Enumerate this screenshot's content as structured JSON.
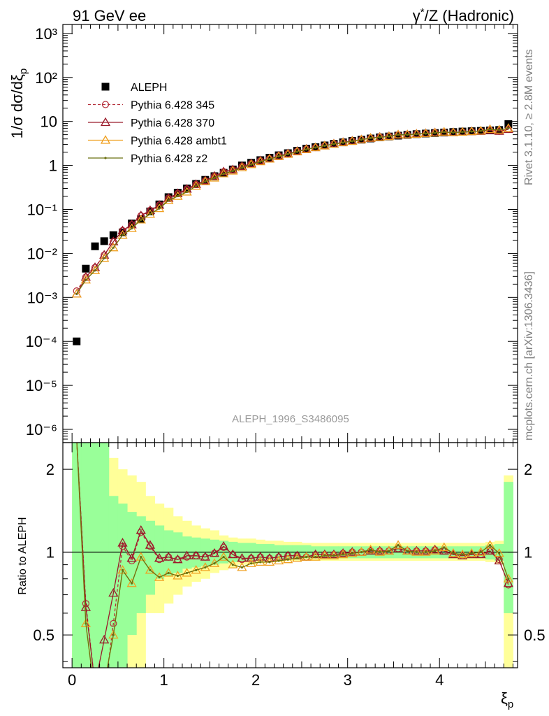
{
  "header": {
    "left_title": "91 GeV ee",
    "right_title_prefix": "γ",
    "right_title_sup": "*",
    "right_title_suffix": "/Z (Hadronic)"
  },
  "watermarks": {
    "analysis": "ALEPH_1996_S3486095",
    "rivet": "Rivet 3.1.10, ≥ 2.8M events",
    "mcplots": "mcplots.cern.ch [arXiv:1306.3436]"
  },
  "axes": {
    "y_main_label": "1/σ dσ/dξ",
    "y_main_label_sub": "p",
    "y_ratio_label": "Ratio to ALEPH",
    "x_label": "ξ",
    "x_label_sub": "p"
  },
  "legend": [
    {
      "label": "ALEPH",
      "color": "#000000",
      "marker": "square",
      "line": "none"
    },
    {
      "label": "Pythia 6.428 345",
      "color": "#b5303c",
      "marker": "circle-open",
      "line": "dashed"
    },
    {
      "label": "Pythia 6.428 370",
      "color": "#9a1a2a",
      "marker": "triangle-open",
      "line": "solid"
    },
    {
      "label": "Pythia 6.428 ambt1",
      "color": "#f0a020",
      "marker": "triangle-open",
      "line": "solid"
    },
    {
      "label": "Pythia 6.428 z2",
      "color": "#6b7010",
      "marker": "dot",
      "line": "solid"
    }
  ],
  "chart_data": [
    {
      "type": "scatter",
      "panel": "main",
      "yscale": "log",
      "xlim": [
        -0.1,
        4.85
      ],
      "ylim": [
        5e-07,
        1600
      ],
      "x_ticks": [
        0,
        1,
        2,
        3,
        4
      ],
      "y_tick_labels": [
        "10⁻⁶",
        "10⁻⁵",
        "10⁻⁴",
        "10⁻³",
        "10⁻²",
        "10⁻¹",
        "1",
        "10",
        "10²",
        "10³"
      ],
      "x": [
        0.05,
        0.15,
        0.25,
        0.35,
        0.45,
        0.55,
        0.65,
        0.75,
        0.85,
        0.95,
        1.05,
        1.15,
        1.25,
        1.35,
        1.45,
        1.55,
        1.65,
        1.75,
        1.85,
        1.95,
        2.05,
        2.15,
        2.25,
        2.35,
        2.45,
        2.55,
        2.65,
        2.75,
        2.85,
        2.95,
        3.05,
        3.15,
        3.25,
        3.35,
        3.45,
        3.55,
        3.65,
        3.75,
        3.85,
        3.95,
        4.05,
        4.15,
        4.25,
        4.35,
        4.45,
        4.55,
        4.65,
        4.75
      ],
      "series": [
        {
          "name": "ALEPH",
          "values": [
            0.0001,
            0.0045,
            0.0145,
            0.019,
            0.026,
            0.03,
            0.048,
            0.06,
            0.09,
            0.13,
            0.19,
            0.24,
            0.3,
            0.38,
            0.47,
            0.57,
            0.68,
            0.81,
            1.0,
            1.15,
            1.32,
            1.5,
            1.7,
            1.9,
            2.15,
            2.4,
            2.6,
            2.85,
            3.1,
            3.35,
            3.6,
            3.85,
            4.1,
            4.35,
            4.55,
            4.75,
            4.95,
            5.15,
            5.3,
            5.45,
            5.6,
            5.75,
            5.9,
            6.0,
            6.1,
            6.25,
            6.4,
            8.7
          ]
        },
        {
          "name": "Pythia 6.428 345",
          "values": [
            0.0014,
            0.0029,
            0.0048,
            0.0092,
            0.0185,
            0.033,
            0.045,
            0.072,
            0.095,
            0.125,
            0.18,
            0.23,
            0.29,
            0.37,
            0.45,
            0.57,
            0.72,
            0.8,
            0.95,
            1.1,
            1.28,
            1.42,
            1.65,
            1.85,
            2.1,
            2.35,
            2.55,
            2.8,
            3.1,
            3.35,
            3.6,
            3.85,
            4.15,
            4.4,
            4.6,
            4.9,
            5.0,
            5.2,
            5.35,
            5.55,
            5.65,
            5.6,
            5.75,
            5.9,
            6.0,
            6.3,
            6.0,
            6.6
          ]
        },
        {
          "name": "Pythia 6.428 370",
          "values": [
            0.0012,
            0.0029,
            0.0048,
            0.0092,
            0.0185,
            0.033,
            0.045,
            0.072,
            0.095,
            0.125,
            0.18,
            0.23,
            0.29,
            0.37,
            0.45,
            0.57,
            0.72,
            0.8,
            0.95,
            1.1,
            1.28,
            1.42,
            1.65,
            1.85,
            2.1,
            2.35,
            2.55,
            2.8,
            3.1,
            3.35,
            3.6,
            3.85,
            4.15,
            4.4,
            4.6,
            4.9,
            5.0,
            5.2,
            5.35,
            5.55,
            5.65,
            5.6,
            5.75,
            5.9,
            6.0,
            6.3,
            6.0,
            6.6
          ]
        },
        {
          "name": "Pythia 6.428 ambt1",
          "values": [
            0.0012,
            0.0025,
            0.0041,
            0.0078,
            0.0135,
            0.026,
            0.037,
            0.058,
            0.078,
            0.105,
            0.16,
            0.2,
            0.25,
            0.34,
            0.43,
            0.52,
            0.65,
            0.75,
            0.89,
            1.05,
            1.22,
            1.4,
            1.6,
            1.8,
            2.05,
            2.3,
            2.55,
            2.8,
            3.05,
            3.3,
            3.55,
            3.85,
            4.2,
            4.35,
            4.55,
            5.0,
            5.0,
            5.15,
            5.3,
            5.5,
            5.75,
            5.6,
            5.75,
            5.9,
            6.1,
            6.6,
            6.4,
            7.0
          ]
        },
        {
          "name": "Pythia 6.428 z2",
          "values": [
            0.0012,
            0.0025,
            0.0041,
            0.0078,
            0.0135,
            0.026,
            0.037,
            0.058,
            0.078,
            0.105,
            0.16,
            0.2,
            0.25,
            0.34,
            0.43,
            0.52,
            0.65,
            0.75,
            0.89,
            1.05,
            1.22,
            1.4,
            1.6,
            1.8,
            2.05,
            2.3,
            2.55,
            2.8,
            3.05,
            3.3,
            3.55,
            3.85,
            4.2,
            4.35,
            4.55,
            5.0,
            5.0,
            5.15,
            5.3,
            5.5,
            5.75,
            5.6,
            5.75,
            5.9,
            6.1,
            6.6,
            6.4,
            7.0
          ]
        }
      ]
    },
    {
      "type": "line",
      "panel": "ratio",
      "yscale": "log",
      "xlim": [
        -0.1,
        4.85
      ],
      "ylim": [
        0.38,
        2.5
      ],
      "x_ticks": [
        0,
        1,
        2,
        3,
        4
      ],
      "y_tick_labels": [
        "0.5",
        "1",
        "2"
      ],
      "y_ticks": [
        0.5,
        1,
        2
      ],
      "reference_line": 1,
      "x": [
        0.05,
        0.15,
        0.25,
        0.35,
        0.45,
        0.55,
        0.65,
        0.75,
        0.85,
        0.95,
        1.05,
        1.15,
        1.25,
        1.35,
        1.45,
        1.55,
        1.65,
        1.75,
        1.85,
        1.95,
        2.05,
        2.15,
        2.25,
        2.35,
        2.45,
        2.55,
        2.65,
        2.75,
        2.85,
        2.95,
        3.05,
        3.15,
        3.25,
        3.35,
        3.45,
        3.55,
        3.65,
        3.75,
        3.85,
        3.95,
        4.05,
        4.15,
        4.25,
        4.35,
        4.45,
        4.55,
        4.65,
        4.75
      ],
      "band_green": [
        [
          0.38,
          2.5
        ],
        [
          0.38,
          2.5
        ],
        [
          0.38,
          2.5
        ],
        [
          0.38,
          2.5
        ],
        [
          0.38,
          1.6
        ],
        [
          0.38,
          1.5
        ],
        [
          0.5,
          1.4
        ],
        [
          0.6,
          1.35
        ],
        [
          0.7,
          1.3
        ],
        [
          0.8,
          1.25
        ],
        [
          0.82,
          1.2
        ],
        [
          0.84,
          1.18
        ],
        [
          0.87,
          1.14
        ],
        [
          0.88,
          1.13
        ],
        [
          0.89,
          1.12
        ],
        [
          0.9,
          1.11
        ],
        [
          0.91,
          1.1
        ],
        [
          0.92,
          1.09
        ],
        [
          0.93,
          1.08
        ],
        [
          0.93,
          1.08
        ],
        [
          0.93,
          1.07
        ],
        [
          0.94,
          1.07
        ],
        [
          0.94,
          1.06
        ],
        [
          0.94,
          1.06
        ],
        [
          0.94,
          1.06
        ],
        [
          0.95,
          1.06
        ],
        [
          0.95,
          1.05
        ],
        [
          0.95,
          1.05
        ],
        [
          0.95,
          1.05
        ],
        [
          0.95,
          1.05
        ],
        [
          0.95,
          1.05
        ],
        [
          0.95,
          1.05
        ],
        [
          0.95,
          1.05
        ],
        [
          0.95,
          1.05
        ],
        [
          0.95,
          1.05
        ],
        [
          0.95,
          1.05
        ],
        [
          0.95,
          1.05
        ],
        [
          0.95,
          1.05
        ],
        [
          0.95,
          1.05
        ],
        [
          0.95,
          1.05
        ],
        [
          0.95,
          1.05
        ],
        [
          0.95,
          1.05
        ],
        [
          0.95,
          1.05
        ],
        [
          0.95,
          1.05
        ],
        [
          0.95,
          1.05
        ],
        [
          0.94,
          1.06
        ],
        [
          0.93,
          1.07
        ],
        [
          0.6,
          1.8
        ]
      ],
      "band_yellow": [
        [
          0.38,
          2.5
        ],
        [
          0.38,
          2.5
        ],
        [
          0.38,
          2.5
        ],
        [
          0.38,
          2.5
        ],
        [
          0.38,
          2.2
        ],
        [
          0.38,
          2.0
        ],
        [
          0.38,
          1.9
        ],
        [
          0.38,
          1.8
        ],
        [
          0.6,
          1.6
        ],
        [
          0.6,
          1.5
        ],
        [
          0.65,
          1.45
        ],
        [
          0.7,
          1.35
        ],
        [
          0.75,
          1.3
        ],
        [
          0.78,
          1.25
        ],
        [
          0.8,
          1.22
        ],
        [
          0.84,
          1.2
        ],
        [
          0.86,
          1.15
        ],
        [
          0.88,
          1.13
        ],
        [
          0.9,
          1.12
        ],
        [
          0.9,
          1.12
        ],
        [
          0.91,
          1.11
        ],
        [
          0.92,
          1.1
        ],
        [
          0.92,
          1.1
        ],
        [
          0.93,
          1.09
        ],
        [
          0.93,
          1.09
        ],
        [
          0.93,
          1.08
        ],
        [
          0.93,
          1.08
        ],
        [
          0.93,
          1.08
        ],
        [
          0.93,
          1.08
        ],
        [
          0.93,
          1.08
        ],
        [
          0.93,
          1.08
        ],
        [
          0.93,
          1.08
        ],
        [
          0.93,
          1.08
        ],
        [
          0.93,
          1.08
        ],
        [
          0.93,
          1.08
        ],
        [
          0.93,
          1.08
        ],
        [
          0.93,
          1.08
        ],
        [
          0.93,
          1.08
        ],
        [
          0.93,
          1.08
        ],
        [
          0.93,
          1.08
        ],
        [
          0.93,
          1.08
        ],
        [
          0.93,
          1.08
        ],
        [
          0.93,
          1.08
        ],
        [
          0.93,
          1.08
        ],
        [
          0.93,
          1.08
        ],
        [
          0.92,
          1.09
        ],
        [
          0.91,
          1.1
        ],
        [
          0.38,
          1.9
        ]
      ],
      "series": [
        {
          "name": "Pythia 6.428 345",
          "values": [
            2.6,
            0.65,
            0.33,
            0.3,
            0.55,
            1.05,
            0.93,
            1.18,
            1.05,
            0.94,
            0.96,
            0.94,
            0.96,
            0.97,
            0.96,
            0.99,
            1.04,
            0.98,
            0.94,
            0.95,
            0.96,
            0.95,
            0.96,
            0.97,
            0.97,
            0.96,
            0.98,
            0.98,
            0.98,
            0.99,
            1.0,
            1.0,
            1.01,
            1.01,
            1.01,
            1.03,
            1.01,
            1.01,
            1.01,
            1.02,
            1.01,
            0.98,
            0.97,
            0.98,
            0.98,
            1.01,
            0.94,
            0.76
          ]
        },
        {
          "name": "Pythia 6.428 370",
          "values": [
            2.6,
            0.63,
            0.33,
            0.48,
            0.71,
            1.08,
            0.95,
            1.2,
            1.06,
            0.95,
            0.96,
            0.94,
            0.97,
            0.97,
            0.96,
            0.99,
            1.05,
            0.98,
            0.95,
            0.95,
            0.96,
            0.95,
            0.96,
            0.97,
            0.97,
            0.96,
            0.98,
            0.98,
            0.98,
            0.99,
            1.0,
            1.0,
            1.01,
            1.01,
            1.01,
            1.03,
            1.01,
            1.01,
            1.01,
            1.02,
            1.01,
            0.98,
            0.97,
            0.98,
            0.98,
            1.01,
            0.93,
            0.77
          ]
        },
        {
          "name": "Pythia 6.428 ambt1",
          "values": [
            2.6,
            0.55,
            0.3,
            0.33,
            0.5,
            0.86,
            0.77,
            0.96,
            0.86,
            0.81,
            0.84,
            0.82,
            0.84,
            0.86,
            0.88,
            0.91,
            0.96,
            0.9,
            0.88,
            0.91,
            0.92,
            0.92,
            0.93,
            0.94,
            0.95,
            0.96,
            0.96,
            0.97,
            0.97,
            0.98,
            0.99,
            1.0,
            1.02,
            1.0,
            1.01,
            1.06,
            1.01,
            1.0,
            1.0,
            1.01,
            1.04,
            0.99,
            0.98,
            0.99,
            1.0,
            1.06,
            0.99,
            0.8
          ]
        },
        {
          "name": "Pythia 6.428 z2",
          "values": [
            2.6,
            0.55,
            0.3,
            0.33,
            0.5,
            0.86,
            0.77,
            0.96,
            0.86,
            0.81,
            0.84,
            0.82,
            0.84,
            0.86,
            0.88,
            0.91,
            0.96,
            0.9,
            0.88,
            0.91,
            0.92,
            0.92,
            0.93,
            0.94,
            0.95,
            0.96,
            0.96,
            0.97,
            0.97,
            0.98,
            0.99,
            1.0,
            1.02,
            1.0,
            1.01,
            1.06,
            1.01,
            1.0,
            1.0,
            1.01,
            1.04,
            0.99,
            0.98,
            0.99,
            1.0,
            1.06,
            0.99,
            0.8
          ]
        }
      ]
    }
  ]
}
